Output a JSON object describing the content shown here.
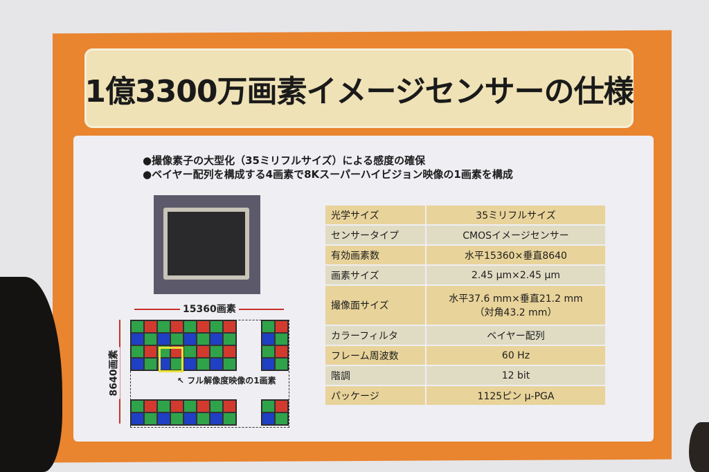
{
  "title": "1億3300万画素イメージセンサーの仕様",
  "bullets": [
    "●撮像素子の大型化（35ミリフルサイズ）による感度の確保",
    "●ベイヤー配列を構成する4画素で8Kスーパーハイビジョン映像の1画素を構成"
  ],
  "diagram": {
    "width_label": "15360画素",
    "height_label": "8640画素",
    "pixel_note": "フル解像度映像の1画素"
  },
  "specs": [
    {
      "k": "光学サイズ",
      "v": "35ミリフルサイズ"
    },
    {
      "k": "センサータイプ",
      "v": "CMOSイメージセンサー"
    },
    {
      "k": "有効画素数",
      "v": "水平15360×垂直8640"
    },
    {
      "k": "画素サイズ",
      "v": "2.45 μm×2.45 μm"
    },
    {
      "k": "撮像面サイズ",
      "v": "水平37.6 mm×垂直21.2 mm",
      "v2": "（対角43.2 mm）"
    },
    {
      "k": "カラーフィルタ",
      "v": "ベイヤー配列"
    },
    {
      "k": "フレーム周波数",
      "v": "60 Hz"
    },
    {
      "k": "階調",
      "v": "12 bit"
    },
    {
      "k": "パッケージ",
      "v": "1125ピン μ-PGA"
    }
  ],
  "colors": {
    "board": "#e9842f",
    "title_bg": "#efe2b6",
    "row_a": "#e8d39a",
    "row_b": "#e0dcc4",
    "green": "#2ea34a",
    "red": "#d33a2e",
    "blue": "#1f3fc4",
    "highlight": "#e8e23a"
  }
}
